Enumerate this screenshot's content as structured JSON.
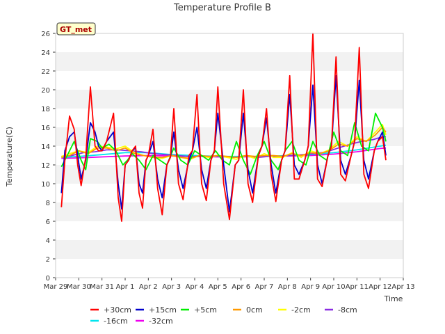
{
  "chart_data": {
    "type": "line",
    "title": "Temperature Profile B",
    "xlabel": "Time",
    "ylabel": "Temperature(C)",
    "badge": "GT_met",
    "ylim": [
      0,
      26
    ],
    "yticks": [
      0,
      2,
      4,
      6,
      8,
      10,
      12,
      14,
      16,
      18,
      20,
      22,
      24,
      26
    ],
    "xlim": [
      0,
      15
    ],
    "xticks": [
      {
        "x": 0,
        "label": "Mar 29"
      },
      {
        "x": 1,
        "label": "Mar 30"
      },
      {
        "x": 2,
        "label": "Mar 31"
      },
      {
        "x": 3,
        "label": "Apr 1"
      },
      {
        "x": 4,
        "label": "Apr 2"
      },
      {
        "x": 5,
        "label": "Apr 3"
      },
      {
        "x": 6,
        "label": "Apr 4"
      },
      {
        "x": 7,
        "label": "Apr 5"
      },
      {
        "x": 8,
        "label": "Apr 6"
      },
      {
        "x": 9,
        "label": "Apr 7"
      },
      {
        "x": 10,
        "label": "Apr 8"
      },
      {
        "x": 11,
        "label": "Apr 9"
      },
      {
        "x": 12,
        "label": "Apr 10"
      },
      {
        "x": 13,
        "label": "Apr 11"
      },
      {
        "x": 14,
        "label": "Apr 12"
      },
      {
        "x": 15,
        "label": "Apr 13"
      }
    ],
    "grid": "horizontal bands",
    "legend_position": "bottom",
    "x_unit": "days since Mar 29",
    "series": [
      {
        "name": "+30cm",
        "color": "#ff0000",
        "x": [
          0.25,
          0.4,
          0.6,
          0.8,
          0.95,
          1.1,
          1.3,
          1.5,
          1.7,
          1.85,
          2.0,
          2.2,
          2.5,
          2.7,
          2.85,
          3.0,
          3.15,
          3.3,
          3.45,
          3.6,
          3.75,
          3.9,
          4.0,
          4.2,
          4.4,
          4.6,
          4.8,
          4.95,
          5.1,
          5.3,
          5.5,
          5.75,
          5.9,
          6.1,
          6.3,
          6.5,
          6.7,
          6.85,
          7.0,
          7.25,
          7.5,
          7.75,
          7.9,
          8.1,
          8.3,
          8.5,
          8.75,
          8.9,
          9.1,
          9.3,
          9.5,
          9.75,
          9.9,
          10.1,
          10.3,
          10.5,
          10.75,
          10.9,
          11.1,
          11.3,
          11.5,
          11.75,
          11.9,
          12.1,
          12.3,
          12.5,
          12.75,
          12.9,
          13.1,
          13.3,
          13.5,
          13.75,
          13.9,
          14.1,
          14.25
        ],
        "y": [
          7.5,
          12.5,
          17.2,
          15.8,
          12.0,
          9.8,
          12.8,
          20.3,
          14.0,
          13.5,
          13.5,
          14.5,
          17.5,
          8.5,
          6.0,
          12.0,
          12.5,
          13.5,
          14.0,
          9.0,
          7.4,
          12.5,
          13.0,
          15.8,
          9.5,
          6.7,
          12.0,
          12.8,
          18.0,
          10.0,
          8.3,
          13.0,
          13.5,
          19.5,
          10.0,
          8.2,
          12.5,
          13.5,
          20.3,
          10.0,
          6.2,
          12.0,
          12.5,
          20.0,
          10.0,
          8.0,
          13.0,
          14.0,
          18.0,
          11.0,
          8.1,
          12.5,
          13.5,
          21.5,
          10.5,
          10.5,
          12.5,
          14.0,
          26.0,
          10.5,
          9.7,
          13.0,
          14.0,
          23.5,
          11.0,
          10.3,
          13.0,
          14.5,
          24.5,
          11.0,
          9.5,
          13.5,
          14.5,
          15.0,
          12.5
        ]
      },
      {
        "name": "+15cm",
        "color": "#0000cc",
        "x": [
          0.25,
          0.4,
          0.6,
          0.8,
          0.95,
          1.1,
          1.3,
          1.5,
          1.7,
          1.85,
          2.0,
          2.2,
          2.5,
          2.7,
          2.85,
          3.0,
          3.15,
          3.3,
          3.45,
          3.6,
          3.75,
          3.9,
          4.0,
          4.2,
          4.4,
          4.6,
          4.8,
          4.95,
          5.1,
          5.3,
          5.5,
          5.75,
          5.9,
          6.1,
          6.3,
          6.5,
          6.7,
          6.85,
          7.0,
          7.25,
          7.5,
          7.75,
          7.9,
          8.1,
          8.3,
          8.5,
          8.75,
          8.9,
          9.1,
          9.3,
          9.5,
          9.75,
          9.9,
          10.1,
          10.3,
          10.5,
          10.75,
          10.9,
          11.1,
          11.3,
          11.5,
          11.75,
          11.9,
          12.1,
          12.3,
          12.5,
          12.75,
          12.9,
          13.1,
          13.3,
          13.5,
          13.75,
          13.9,
          14.1,
          14.25
        ],
        "y": [
          9.0,
          13.5,
          15.0,
          15.5,
          13.0,
          10.5,
          12.5,
          16.5,
          15.5,
          14.0,
          13.5,
          14.5,
          15.5,
          10.0,
          7.3,
          12.0,
          12.5,
          13.5,
          13.8,
          10.0,
          9.0,
          12.5,
          13.0,
          14.5,
          10.5,
          8.5,
          12.0,
          12.8,
          15.5,
          11.5,
          9.5,
          12.5,
          13.5,
          16.0,
          11.5,
          9.5,
          12.5,
          13.5,
          17.5,
          12.0,
          7.0,
          12.0,
          12.5,
          17.5,
          11.5,
          9.0,
          13.0,
          14.0,
          17.0,
          12.0,
          9.0,
          12.5,
          13.5,
          19.5,
          12.0,
          11.0,
          12.5,
          14.0,
          20.5,
          12.0,
          10.0,
          13.0,
          14.0,
          21.5,
          12.5,
          11.0,
          13.0,
          14.5,
          21.0,
          12.5,
          10.5,
          13.5,
          14.5,
          15.5,
          13.0
        ]
      },
      {
        "name": "+5cm",
        "color": "#00ee00",
        "x": [
          0.25,
          0.5,
          0.8,
          1.1,
          1.3,
          1.5,
          1.8,
          2.0,
          2.3,
          2.6,
          2.9,
          3.1,
          3.3,
          3.6,
          3.9,
          4.2,
          4.5,
          4.8,
          5.1,
          5.4,
          5.7,
          6.0,
          6.3,
          6.6,
          6.9,
          7.2,
          7.5,
          7.8,
          8.1,
          8.4,
          8.7,
          9.0,
          9.3,
          9.6,
          9.9,
          10.2,
          10.5,
          10.8,
          11.1,
          11.4,
          11.7,
          12.0,
          12.3,
          12.6,
          12.9,
          13.2,
          13.5,
          13.8,
          14.1,
          14.25
        ],
        "y": [
          11.8,
          13.0,
          14.5,
          12.5,
          11.5,
          14.8,
          14.5,
          13.8,
          14.2,
          13.5,
          12.0,
          12.5,
          13.2,
          12.5,
          11.5,
          13.0,
          12.5,
          12.0,
          13.8,
          12.5,
          12.0,
          13.5,
          13.0,
          12.5,
          13.5,
          12.5,
          12.0,
          14.5,
          12.5,
          11.0,
          13.0,
          14.5,
          12.5,
          11.5,
          13.5,
          14.5,
          12.5,
          12.0,
          14.5,
          13.0,
          12.5,
          15.5,
          13.5,
          13.0,
          16.5,
          14.0,
          13.5,
          17.5,
          16.0,
          14.5
        ]
      },
      {
        "name": "0cm",
        "color": "#ff9900",
        "x": [
          0.25,
          0.6,
          1.0,
          1.4,
          1.8,
          2.2,
          2.6,
          3.0,
          3.4,
          3.8,
          4.2,
          4.6,
          5.0,
          5.4,
          5.8,
          6.2,
          6.6,
          7.0,
          7.4,
          7.8,
          8.2,
          8.6,
          9.0,
          9.4,
          9.8,
          10.2,
          10.6,
          11.0,
          11.4,
          11.8,
          12.2,
          12.6,
          13.0,
          13.4,
          13.8,
          14.1,
          14.25
        ],
        "y": [
          12.8,
          13.0,
          13.5,
          13.2,
          13.8,
          13.8,
          13.5,
          13.8,
          13.2,
          13.0,
          12.8,
          12.8,
          13.0,
          12.8,
          12.7,
          13.0,
          12.9,
          13.0,
          12.9,
          12.8,
          13.0,
          12.9,
          13.0,
          13.0,
          12.9,
          13.2,
          13.0,
          13.3,
          13.2,
          13.5,
          14.2,
          14.0,
          14.8,
          14.5,
          15.2,
          16.0,
          15.5
        ]
      },
      {
        "name": "-2cm",
        "color": "#ffff00",
        "x": [
          0.25,
          0.6,
          1.0,
          1.4,
          1.8,
          2.2,
          2.6,
          3.0,
          3.4,
          3.8,
          4.2,
          4.6,
          5.0,
          5.4,
          5.8,
          6.2,
          6.6,
          7.0,
          7.4,
          7.8,
          8.2,
          8.6,
          9.0,
          9.4,
          9.8,
          10.2,
          10.6,
          11.0,
          11.4,
          11.8,
          12.2,
          12.6,
          13.0,
          13.4,
          13.8,
          14.1,
          14.25
        ],
        "y": [
          12.9,
          13.2,
          13.5,
          13.3,
          14.0,
          13.9,
          13.7,
          14.0,
          13.3,
          13.0,
          12.8,
          12.7,
          13.0,
          12.8,
          12.6,
          13.0,
          12.8,
          13.0,
          12.8,
          12.6,
          13.0,
          12.7,
          13.2,
          12.8,
          12.8,
          13.3,
          12.8,
          13.5,
          13.2,
          13.6,
          14.5,
          14.0,
          15.0,
          14.5,
          15.5,
          16.3,
          15.2
        ]
      },
      {
        "name": "-8cm",
        "color": "#8a2be2",
        "x": [
          0.25,
          0.7,
          1.2,
          1.7,
          2.2,
          2.7,
          3.2,
          3.7,
          4.2,
          4.7,
          5.2,
          5.7,
          6.2,
          6.7,
          7.2,
          7.7,
          8.2,
          8.7,
          9.2,
          9.7,
          10.2,
          10.7,
          11.2,
          11.7,
          12.2,
          12.7,
          13.2,
          13.7,
          14.1,
          14.25
        ],
        "y": [
          12.9,
          13.0,
          13.3,
          13.4,
          13.6,
          13.6,
          13.5,
          13.4,
          13.2,
          13.1,
          13.0,
          12.9,
          12.9,
          12.9,
          12.9,
          12.8,
          12.9,
          12.8,
          12.9,
          12.9,
          13.0,
          13.1,
          13.2,
          13.4,
          13.8,
          14.2,
          14.5,
          14.7,
          15.0,
          15.0
        ]
      },
      {
        "name": "-16cm",
        "color": "#00e5ee",
        "x": [
          0.25,
          1.0,
          2.0,
          3.0,
          4.0,
          5.0,
          6.0,
          7.0,
          8.0,
          9.0,
          10.0,
          11.0,
          12.0,
          13.0,
          14.0,
          14.25
        ],
        "y": [
          12.8,
          12.9,
          13.1,
          13.3,
          13.3,
          13.1,
          13.0,
          12.9,
          12.9,
          12.9,
          13.0,
          13.1,
          13.3,
          13.6,
          14.0,
          14.1
        ]
      },
      {
        "name": "-32cm",
        "color": "#ee00ee",
        "x": [
          0.25,
          1.0,
          2.0,
          3.0,
          4.0,
          5.0,
          6.0,
          7.0,
          8.0,
          9.0,
          10.0,
          11.0,
          12.0,
          13.0,
          14.0,
          14.25
        ],
        "y": [
          12.7,
          12.75,
          12.85,
          12.95,
          13.0,
          12.95,
          12.9,
          12.85,
          12.85,
          12.9,
          12.95,
          13.0,
          13.15,
          13.4,
          13.75,
          13.8
        ]
      }
    ]
  }
}
